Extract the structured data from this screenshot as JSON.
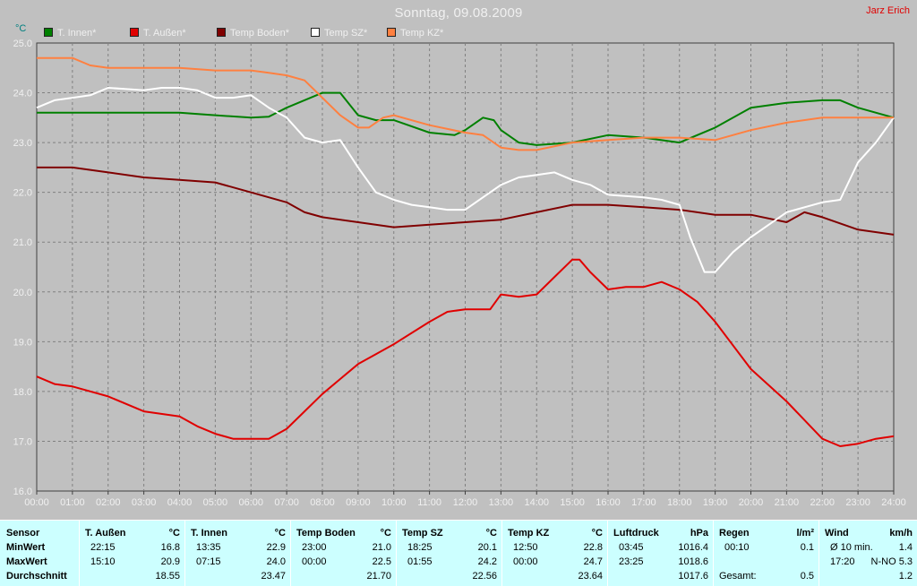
{
  "title": "Sonntag, 09.08.2009",
  "author": "Jarz Erich",
  "unit_label": "°C",
  "colors": {
    "background": "#c0c0c0",
    "plot_background": "#c0c0c0",
    "grid": "#808080",
    "axis_text": "#f0f0f0",
    "table_background": "#ccffff"
  },
  "chart_data": {
    "type": "line",
    "ylabel": "°C",
    "ylim": [
      16.0,
      25.0
    ],
    "xlim_hours": [
      0,
      24
    ],
    "yticks": [
      "16.0",
      "17.0",
      "18.0",
      "19.0",
      "20.0",
      "21.0",
      "22.0",
      "23.0",
      "24.0",
      "25.0"
    ],
    "xticks": [
      "00:00",
      "01:00",
      "02:00",
      "03:00",
      "04:00",
      "05:00",
      "06:00",
      "07:00",
      "08:00",
      "09:00",
      "10:00",
      "11:00",
      "12:00",
      "13:00",
      "14:00",
      "15:00",
      "16:00",
      "17:00",
      "18:00",
      "19:00",
      "20:00",
      "21:00",
      "22:00",
      "23:00",
      "24:00"
    ],
    "grid": true,
    "legend_position": "top-left",
    "series": [
      {
        "name": "T. Innen*",
        "color": "#008000",
        "x": [
          0,
          4,
          5,
          6,
          6.5,
          7,
          8,
          8.5,
          9,
          9.5,
          10,
          11,
          11.7,
          12,
          12.5,
          12.8,
          13,
          13.5,
          14,
          15,
          16,
          17,
          18,
          19,
          20,
          21,
          22,
          22.5,
          23,
          24
        ],
        "y": [
          23.6,
          23.6,
          23.55,
          23.5,
          23.52,
          23.7,
          24.0,
          24.0,
          23.55,
          23.45,
          23.45,
          23.2,
          23.15,
          23.25,
          23.5,
          23.45,
          23.25,
          23.0,
          22.95,
          23.0,
          23.15,
          23.1,
          23.0,
          23.3,
          23.7,
          23.8,
          23.85,
          23.85,
          23.7,
          23.5
        ]
      },
      {
        "name": "T. Außen*",
        "color": "#e00000",
        "x": [
          0,
          0.5,
          1,
          2,
          3,
          4,
          4.5,
          5,
          5.5,
          6,
          6.5,
          7,
          7.5,
          8,
          8.5,
          9,
          9.5,
          10,
          11,
          11.5,
          12,
          12.7,
          13,
          13.5,
          14,
          14.5,
          15,
          15.2,
          15.5,
          16,
          16.5,
          17,
          17.5,
          18,
          18.5,
          19,
          20,
          21,
          22,
          22.5,
          23,
          23.5,
          24
        ],
        "y": [
          18.3,
          18.15,
          18.1,
          17.9,
          17.6,
          17.5,
          17.3,
          17.15,
          17.05,
          17.05,
          17.05,
          17.25,
          17.6,
          17.95,
          18.25,
          18.55,
          18.75,
          18.95,
          19.4,
          19.6,
          19.65,
          19.65,
          19.95,
          19.9,
          19.95,
          20.3,
          20.65,
          20.65,
          20.4,
          20.05,
          20.1,
          20.1,
          20.2,
          20.05,
          19.8,
          19.4,
          18.45,
          17.8,
          17.05,
          16.9,
          16.95,
          17.05,
          17.1
        ]
      },
      {
        "name": "Temp Boden*",
        "color": "#800000",
        "x": [
          0,
          1,
          2,
          3,
          4,
          5,
          6,
          7,
          7.5,
          8,
          9,
          10,
          11,
          12,
          13,
          14,
          15,
          16,
          17,
          18,
          19,
          20,
          21,
          21.5,
          22,
          23,
          24
        ],
        "y": [
          22.5,
          22.5,
          22.4,
          22.3,
          22.25,
          22.2,
          22.0,
          21.8,
          21.6,
          21.5,
          21.4,
          21.3,
          21.35,
          21.4,
          21.45,
          21.6,
          21.75,
          21.75,
          21.7,
          21.65,
          21.55,
          21.55,
          21.4,
          21.6,
          21.5,
          21.25,
          21.15
        ]
      },
      {
        "name": "Temp SZ*",
        "color": "#ffffff",
        "x": [
          0,
          0.5,
          1,
          1.5,
          2,
          3,
          3.5,
          4,
          4.5,
          5,
          5.5,
          6,
          6.5,
          7,
          7.5,
          8,
          8.5,
          9,
          9.5,
          10,
          10.5,
          11,
          11.5,
          12,
          12.5,
          13,
          13.5,
          14,
          14.5,
          15,
          15.5,
          16,
          17,
          17.5,
          18,
          18.3,
          18.7,
          19,
          19.5,
          20,
          21,
          22,
          22.5,
          23,
          23.5,
          24
        ],
        "y": [
          23.7,
          23.85,
          23.9,
          23.95,
          24.1,
          24.05,
          24.1,
          24.1,
          24.05,
          23.9,
          23.9,
          23.95,
          23.7,
          23.5,
          23.1,
          23.0,
          23.05,
          22.5,
          22.0,
          21.85,
          21.75,
          21.7,
          21.65,
          21.65,
          21.9,
          22.15,
          22.3,
          22.35,
          22.4,
          22.25,
          22.15,
          21.95,
          21.9,
          21.85,
          21.75,
          21.1,
          20.4,
          20.4,
          20.8,
          21.1,
          21.6,
          21.8,
          21.85,
          22.6,
          23.0,
          23.5
        ]
      },
      {
        "name": "Temp KZ*",
        "color": "#ff8040",
        "x": [
          0,
          1,
          1.5,
          2,
          3,
          4,
          5,
          6,
          6.5,
          7,
          7.5,
          8,
          8.5,
          9,
          9.3,
          9.7,
          10,
          11,
          12,
          12.5,
          13,
          13.5,
          14,
          15,
          16,
          17,
          18,
          19,
          20,
          21,
          22,
          23,
          24
        ],
        "y": [
          24.7,
          24.7,
          24.55,
          24.5,
          24.5,
          24.5,
          24.45,
          24.45,
          24.4,
          24.35,
          24.25,
          23.9,
          23.55,
          23.3,
          23.3,
          23.5,
          23.55,
          23.35,
          23.2,
          23.15,
          22.9,
          22.85,
          22.85,
          23.0,
          23.05,
          23.1,
          23.1,
          23.05,
          23.25,
          23.4,
          23.5,
          23.5,
          23.5
        ]
      }
    ]
  },
  "stats": {
    "row_labels": {
      "header": "Sensor",
      "min": "MinWert",
      "max": "MaxWert",
      "avg": "Durchschnitt"
    },
    "columns": [
      {
        "name": "T. Außen",
        "unit": "°C",
        "min_time": "22:15",
        "min_val": "16.8",
        "max_time": "15:10",
        "max_val": "20.9",
        "avg": "18.55"
      },
      {
        "name": "T. Innen",
        "unit": "°C",
        "min_time": "13:35",
        "min_val": "22.9",
        "max_time": "07:15",
        "max_val": "24.0",
        "avg": "23.47"
      },
      {
        "name": "Temp Boden",
        "unit": "°C",
        "min_time": "23:00",
        "min_val": "21.0",
        "max_time": "00:00",
        "max_val": "22.5",
        "avg": "21.70"
      },
      {
        "name": "Temp SZ",
        "unit": "°C",
        "min_time": "18:25",
        "min_val": "20.1",
        "max_time": "01:55",
        "max_val": "24.2",
        "avg": "22.56"
      },
      {
        "name": "Temp KZ",
        "unit": "°C",
        "min_time": "12:50",
        "min_val": "22.8",
        "max_time": "00:00",
        "max_val": "24.7",
        "avg": "23.64"
      },
      {
        "name": "Luftdruck",
        "unit": "hPa",
        "min_time": "03:45",
        "min_val": "1016.4",
        "max_time": "23:25",
        "max_val": "1018.6",
        "avg": "1017.6"
      },
      {
        "name": "Regen",
        "unit": "l/m²",
        "min_time": "00:10",
        "min_val": "0.1",
        "max_time": "",
        "max_val": "",
        "avg_label": "Gesamt:",
        "avg": "0.5"
      },
      {
        "name": "Wind",
        "unit": "km/h",
        "min_time": "Ø 10 min.",
        "min_val": "1.4",
        "max_time": "17:20",
        "max_val": "N-NO 5.3",
        "avg": "1.2"
      }
    ]
  }
}
